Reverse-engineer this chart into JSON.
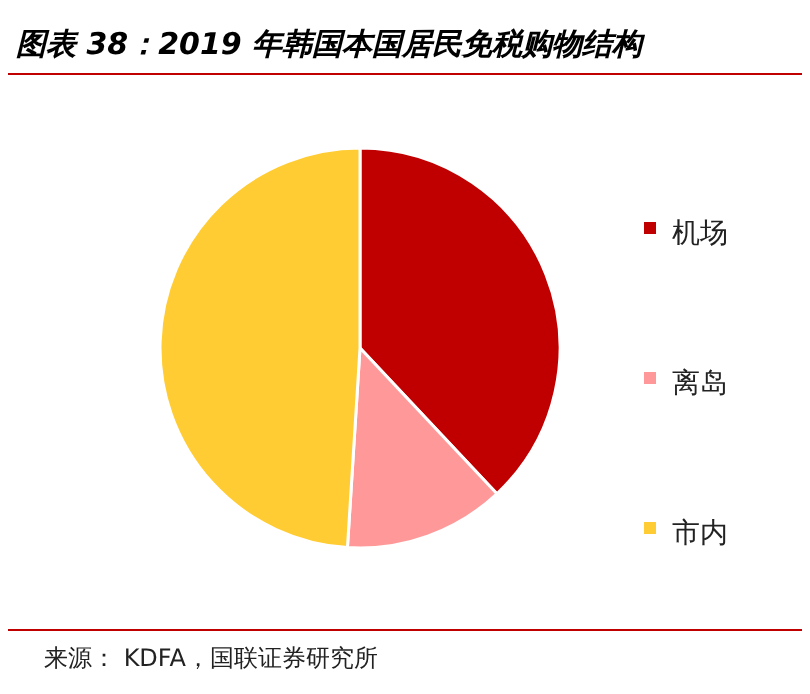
{
  "chart_data": {
    "type": "pie",
    "title": "图表 38：2019 年韩国本国居民免税购物结构",
    "categories": [
      "机场",
      "离岛",
      "市内"
    ],
    "values": [
      38,
      13,
      49
    ],
    "colors": [
      "#c00000",
      "#ff9999",
      "#ffcc33"
    ],
    "legend": "right",
    "annotations": [
      "来源： KDFA，国联证券研究所"
    ]
  }
}
